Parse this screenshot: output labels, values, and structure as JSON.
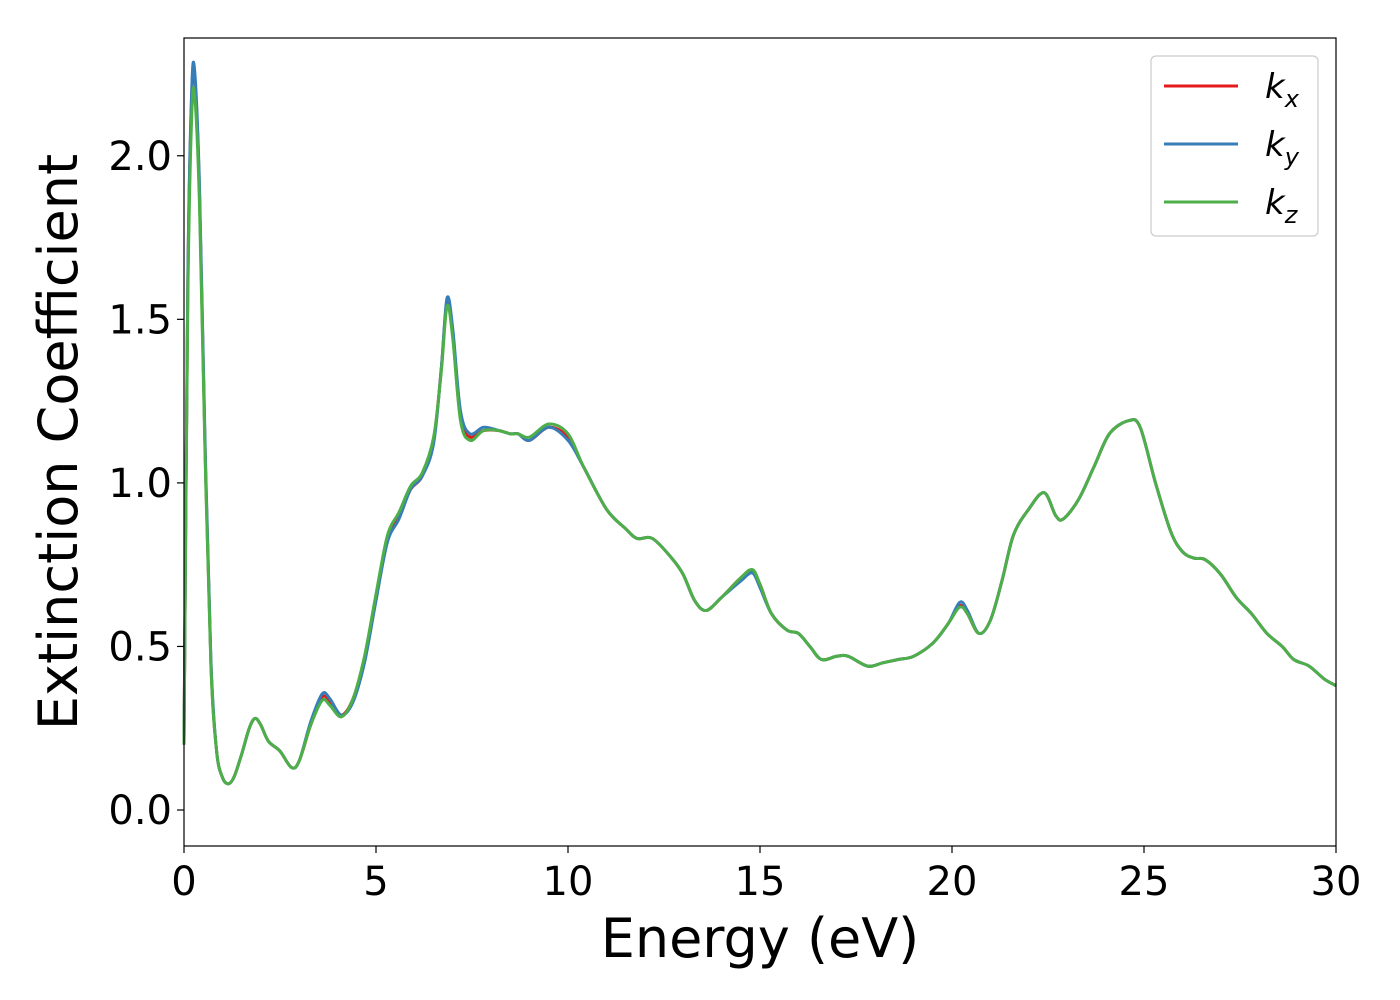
{
  "chart_data": {
    "type": "line",
    "title": "",
    "xlabel": "Energy (eV)",
    "ylabel": "Extinction Coefficient",
    "xlim": [
      0,
      30
    ],
    "ylim": [
      -0.11,
      2.36
    ],
    "xticks": [
      0,
      5,
      10,
      15,
      20,
      25,
      30
    ],
    "xtick_labels": [
      "0",
      "5",
      "10",
      "15",
      "20",
      "25",
      "30"
    ],
    "yticks": [
      0.0,
      0.5,
      1.0,
      1.5,
      2.0
    ],
    "ytick_labels": [
      "0.0",
      "0.5",
      "1.0",
      "1.5",
      "2.0"
    ],
    "grid": false,
    "legend_position": "top-right",
    "series": [
      {
        "name": "k",
        "subscript": "x",
        "color": "#e41a1c",
        "points": [
          [
            0,
            0.2
          ],
          [
            0.1,
            1.6
          ],
          [
            0.2,
            2.18
          ],
          [
            0.28,
            2.24
          ],
          [
            0.4,
            1.9
          ],
          [
            0.55,
            1.1
          ],
          [
            0.7,
            0.45
          ],
          [
            0.85,
            0.18
          ],
          [
            1.0,
            0.1
          ],
          [
            1.15,
            0.08
          ],
          [
            1.3,
            0.1
          ],
          [
            1.5,
            0.17
          ],
          [
            1.7,
            0.25
          ],
          [
            1.85,
            0.28
          ],
          [
            2.0,
            0.26
          ],
          [
            2.2,
            0.21
          ],
          [
            2.5,
            0.18
          ],
          [
            2.8,
            0.13
          ],
          [
            3.0,
            0.15
          ],
          [
            3.3,
            0.26
          ],
          [
            3.6,
            0.345
          ],
          [
            3.8,
            0.33
          ],
          [
            4.1,
            0.29
          ],
          [
            4.4,
            0.34
          ],
          [
            4.7,
            0.46
          ],
          [
            5.0,
            0.65
          ],
          [
            5.3,
            0.83
          ],
          [
            5.6,
            0.9
          ],
          [
            5.9,
            0.98
          ],
          [
            6.2,
            1.02
          ],
          [
            6.5,
            1.13
          ],
          [
            6.7,
            1.35
          ],
          [
            6.85,
            1.55
          ],
          [
            7.0,
            1.45
          ],
          [
            7.2,
            1.2
          ],
          [
            7.45,
            1.14
          ],
          [
            7.8,
            1.16
          ],
          [
            8.2,
            1.16
          ],
          [
            8.5,
            1.15
          ],
          [
            8.7,
            1.15
          ],
          [
            9.0,
            1.13
          ],
          [
            9.5,
            1.17
          ],
          [
            10.0,
            1.14
          ],
          [
            10.4,
            1.05
          ],
          [
            11.0,
            0.92
          ],
          [
            11.5,
            0.86
          ],
          [
            11.8,
            0.83
          ],
          [
            12.2,
            0.83
          ],
          [
            12.7,
            0.77
          ],
          [
            13.0,
            0.72
          ],
          [
            13.3,
            0.64
          ],
          [
            13.6,
            0.61
          ],
          [
            14.0,
            0.65
          ],
          [
            14.5,
            0.71
          ],
          [
            14.8,
            0.73
          ],
          [
            15.0,
            0.69
          ],
          [
            15.3,
            0.6
          ],
          [
            15.7,
            0.55
          ],
          [
            16.0,
            0.54
          ],
          [
            16.3,
            0.5
          ],
          [
            16.6,
            0.46
          ],
          [
            17.0,
            0.47
          ],
          [
            17.3,
            0.47
          ],
          [
            17.8,
            0.44
          ],
          [
            18.2,
            0.45
          ],
          [
            18.6,
            0.46
          ],
          [
            19.0,
            0.47
          ],
          [
            19.5,
            0.51
          ],
          [
            19.9,
            0.57
          ],
          [
            20.2,
            0.625
          ],
          [
            20.4,
            0.6
          ],
          [
            20.7,
            0.54
          ],
          [
            21.0,
            0.58
          ],
          [
            21.3,
            0.7
          ],
          [
            21.6,
            0.84
          ],
          [
            22.0,
            0.92
          ],
          [
            22.4,
            0.97
          ],
          [
            22.7,
            0.9
          ],
          [
            22.9,
            0.89
          ],
          [
            23.3,
            0.95
          ],
          [
            23.7,
            1.05
          ],
          [
            24.1,
            1.15
          ],
          [
            24.6,
            1.19
          ],
          [
            24.9,
            1.17
          ],
          [
            25.3,
            1.0
          ],
          [
            25.7,
            0.85
          ],
          [
            26.0,
            0.79
          ],
          [
            26.3,
            0.77
          ],
          [
            26.6,
            0.765
          ],
          [
            27.0,
            0.72
          ],
          [
            27.4,
            0.65
          ],
          [
            27.8,
            0.6
          ],
          [
            28.2,
            0.54
          ],
          [
            28.6,
            0.5
          ],
          [
            28.9,
            0.46
          ],
          [
            29.3,
            0.44
          ],
          [
            29.7,
            0.4
          ],
          [
            30.0,
            0.38
          ]
        ]
      },
      {
        "name": "k",
        "subscript": "y",
        "color": "#377eb8",
        "points": [
          [
            0,
            0.2
          ],
          [
            0.1,
            1.62
          ],
          [
            0.2,
            2.2
          ],
          [
            0.28,
            2.255
          ],
          [
            0.4,
            1.92
          ],
          [
            0.55,
            1.12
          ],
          [
            0.7,
            0.46
          ],
          [
            0.85,
            0.18
          ],
          [
            1.0,
            0.1
          ],
          [
            1.15,
            0.08
          ],
          [
            1.3,
            0.1
          ],
          [
            1.5,
            0.17
          ],
          [
            1.7,
            0.25
          ],
          [
            1.85,
            0.28
          ],
          [
            2.0,
            0.26
          ],
          [
            2.2,
            0.21
          ],
          [
            2.5,
            0.18
          ],
          [
            2.8,
            0.13
          ],
          [
            3.0,
            0.15
          ],
          [
            3.3,
            0.27
          ],
          [
            3.6,
            0.355
          ],
          [
            3.8,
            0.34
          ],
          [
            4.1,
            0.29
          ],
          [
            4.4,
            0.33
          ],
          [
            4.7,
            0.45
          ],
          [
            5.0,
            0.64
          ],
          [
            5.3,
            0.82
          ],
          [
            5.6,
            0.89
          ],
          [
            5.9,
            0.98
          ],
          [
            6.2,
            1.02
          ],
          [
            6.5,
            1.12
          ],
          [
            6.7,
            1.35
          ],
          [
            6.85,
            1.565
          ],
          [
            7.0,
            1.47
          ],
          [
            7.2,
            1.22
          ],
          [
            7.45,
            1.15
          ],
          [
            7.8,
            1.17
          ],
          [
            8.2,
            1.16
          ],
          [
            8.5,
            1.15
          ],
          [
            8.7,
            1.15
          ],
          [
            9.0,
            1.13
          ],
          [
            9.5,
            1.17
          ],
          [
            10.0,
            1.13
          ],
          [
            10.4,
            1.05
          ],
          [
            11.0,
            0.92
          ],
          [
            11.5,
            0.86
          ],
          [
            11.8,
            0.83
          ],
          [
            12.2,
            0.83
          ],
          [
            12.7,
            0.77
          ],
          [
            13.0,
            0.72
          ],
          [
            13.3,
            0.64
          ],
          [
            13.6,
            0.61
          ],
          [
            14.0,
            0.65
          ],
          [
            14.5,
            0.7
          ],
          [
            14.8,
            0.725
          ],
          [
            15.0,
            0.68
          ],
          [
            15.3,
            0.6
          ],
          [
            15.7,
            0.55
          ],
          [
            16.0,
            0.54
          ],
          [
            16.3,
            0.5
          ],
          [
            16.6,
            0.46
          ],
          [
            17.0,
            0.47
          ],
          [
            17.3,
            0.47
          ],
          [
            17.8,
            0.44
          ],
          [
            18.2,
            0.45
          ],
          [
            18.6,
            0.46
          ],
          [
            19.0,
            0.47
          ],
          [
            19.5,
            0.51
          ],
          [
            19.9,
            0.57
          ],
          [
            20.2,
            0.635
          ],
          [
            20.4,
            0.61
          ],
          [
            20.7,
            0.54
          ],
          [
            21.0,
            0.58
          ],
          [
            21.3,
            0.7
          ],
          [
            21.6,
            0.84
          ],
          [
            22.0,
            0.92
          ],
          [
            22.4,
            0.97
          ],
          [
            22.7,
            0.9
          ],
          [
            22.9,
            0.89
          ],
          [
            23.3,
            0.95
          ],
          [
            23.7,
            1.05
          ],
          [
            24.1,
            1.15
          ],
          [
            24.6,
            1.19
          ],
          [
            24.9,
            1.17
          ],
          [
            25.3,
            1.0
          ],
          [
            25.7,
            0.85
          ],
          [
            26.0,
            0.79
          ],
          [
            26.3,
            0.77
          ],
          [
            26.6,
            0.765
          ],
          [
            27.0,
            0.72
          ],
          [
            27.4,
            0.65
          ],
          [
            27.8,
            0.6
          ],
          [
            28.2,
            0.54
          ],
          [
            28.6,
            0.5
          ],
          [
            28.9,
            0.46
          ],
          [
            29.3,
            0.44
          ],
          [
            29.7,
            0.4
          ],
          [
            30.0,
            0.38
          ]
        ]
      },
      {
        "name": "k",
        "subscript": "z",
        "color": "#4daf4a",
        "points": [
          [
            0,
            0.2
          ],
          [
            0.1,
            1.55
          ],
          [
            0.2,
            2.12
          ],
          [
            0.28,
            2.18
          ],
          [
            0.4,
            1.86
          ],
          [
            0.55,
            1.08
          ],
          [
            0.7,
            0.44
          ],
          [
            0.85,
            0.18
          ],
          [
            1.0,
            0.1
          ],
          [
            1.15,
            0.08
          ],
          [
            1.3,
            0.1
          ],
          [
            1.5,
            0.17
          ],
          [
            1.7,
            0.25
          ],
          [
            1.85,
            0.28
          ],
          [
            2.0,
            0.26
          ],
          [
            2.2,
            0.21
          ],
          [
            2.5,
            0.18
          ],
          [
            2.8,
            0.13
          ],
          [
            3.0,
            0.15
          ],
          [
            3.3,
            0.26
          ],
          [
            3.6,
            0.335
          ],
          [
            3.8,
            0.32
          ],
          [
            4.1,
            0.285
          ],
          [
            4.4,
            0.34
          ],
          [
            4.7,
            0.47
          ],
          [
            5.0,
            0.66
          ],
          [
            5.3,
            0.84
          ],
          [
            5.6,
            0.91
          ],
          [
            5.9,
            0.99
          ],
          [
            6.2,
            1.03
          ],
          [
            6.5,
            1.14
          ],
          [
            6.7,
            1.34
          ],
          [
            6.85,
            1.54
          ],
          [
            7.0,
            1.44
          ],
          [
            7.2,
            1.19
          ],
          [
            7.45,
            1.13
          ],
          [
            7.8,
            1.16
          ],
          [
            8.2,
            1.16
          ],
          [
            8.5,
            1.15
          ],
          [
            8.7,
            1.15
          ],
          [
            9.0,
            1.14
          ],
          [
            9.5,
            1.18
          ],
          [
            10.0,
            1.15
          ],
          [
            10.4,
            1.05
          ],
          [
            11.0,
            0.92
          ],
          [
            11.5,
            0.86
          ],
          [
            11.8,
            0.83
          ],
          [
            12.2,
            0.83
          ],
          [
            12.7,
            0.77
          ],
          [
            13.0,
            0.72
          ],
          [
            13.3,
            0.64
          ],
          [
            13.6,
            0.61
          ],
          [
            14.0,
            0.65
          ],
          [
            14.5,
            0.71
          ],
          [
            14.8,
            0.735
          ],
          [
            15.0,
            0.69
          ],
          [
            15.3,
            0.6
          ],
          [
            15.7,
            0.55
          ],
          [
            16.0,
            0.54
          ],
          [
            16.3,
            0.5
          ],
          [
            16.6,
            0.46
          ],
          [
            17.0,
            0.47
          ],
          [
            17.3,
            0.47
          ],
          [
            17.8,
            0.44
          ],
          [
            18.2,
            0.45
          ],
          [
            18.6,
            0.46
          ],
          [
            19.0,
            0.47
          ],
          [
            19.5,
            0.51
          ],
          [
            19.9,
            0.57
          ],
          [
            20.2,
            0.62
          ],
          [
            20.4,
            0.6
          ],
          [
            20.7,
            0.54
          ],
          [
            21.0,
            0.58
          ],
          [
            21.3,
            0.7
          ],
          [
            21.6,
            0.84
          ],
          [
            22.0,
            0.92
          ],
          [
            22.4,
            0.97
          ],
          [
            22.7,
            0.9
          ],
          [
            22.9,
            0.89
          ],
          [
            23.3,
            0.95
          ],
          [
            23.7,
            1.05
          ],
          [
            24.1,
            1.15
          ],
          [
            24.6,
            1.19
          ],
          [
            24.9,
            1.17
          ],
          [
            25.3,
            1.0
          ],
          [
            25.7,
            0.85
          ],
          [
            26.0,
            0.79
          ],
          [
            26.3,
            0.77
          ],
          [
            26.6,
            0.765
          ],
          [
            27.0,
            0.72
          ],
          [
            27.4,
            0.65
          ],
          [
            27.8,
            0.6
          ],
          [
            28.2,
            0.54
          ],
          [
            28.6,
            0.5
          ],
          [
            28.9,
            0.46
          ],
          [
            29.3,
            0.44
          ],
          [
            29.7,
            0.4
          ],
          [
            30.0,
            0.38
          ]
        ]
      }
    ]
  }
}
